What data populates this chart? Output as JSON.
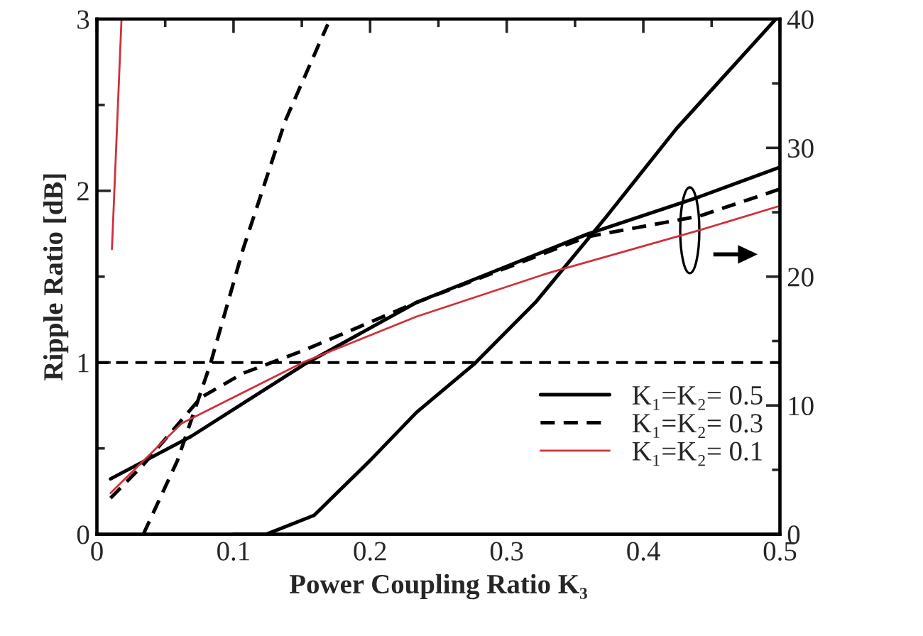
{
  "chart_data": {
    "type": "line",
    "xlabel": "Power Coupling Ratio K₃",
    "ylabel": "Ripple Ratio [dB]",
    "xlim": [
      0,
      0.5
    ],
    "xticks": [
      0,
      0.1,
      0.2,
      0.3,
      0.4,
      0.5
    ],
    "ylim": [
      0,
      3
    ],
    "yticks": [
      0,
      1,
      2,
      3
    ],
    "y2lim": [
      0,
      40
    ],
    "y2ticks": [
      0,
      10,
      20,
      30,
      40
    ],
    "grid": false,
    "legend": "bottom right",
    "marker": "none",
    "ref_lines": [
      {
        "axis": "y",
        "value": 1,
        "color": "#000000",
        "line_style": "dashed"
      }
    ],
    "series": [
      {
        "name": "K₁=K₂= 0.5",
        "color": "#000000",
        "line_style": "solid",
        "axis": "y2",
        "x": [
          0.01,
          0.069,
          0.152,
          0.234,
          0.359,
          0.441,
          0.5
        ],
        "values": [
          4.3,
          7.6,
          13.2,
          18.0,
          23.3,
          26.2,
          28.5
        ]
      },
      {
        "name": "K₁=K₂= 0.3",
        "color": "#000000",
        "line_style": "dashed",
        "axis": "y2",
        "x": [
          0.01,
          0.034,
          0.076,
          0.107,
          0.152,
          0.234,
          0.359,
          0.441,
          0.5
        ],
        "values": [
          2.8,
          5.4,
          10.6,
          12.5,
          14.3,
          18.0,
          23.1,
          24.7,
          26.8
        ]
      },
      {
        "name": "K₁=K₂= 0.1",
        "color": "#d0303a",
        "line_style": "solid",
        "axis": "y2",
        "x": [
          0.01,
          0.062,
          0.152,
          0.234,
          0.331,
          0.441,
          0.5
        ],
        "values": [
          3.2,
          8.6,
          13.4,
          16.9,
          20.3,
          23.6,
          25.5
        ]
      },
      {
        "color": "#000000",
        "line_style": "solid",
        "x": [
          0.1,
          0.124,
          0.159,
          0.2,
          0.234,
          0.276,
          0.321,
          0.372,
          0.424,
          0.497
        ],
        "values": [
          0,
          0,
          0.11,
          0.43,
          0.71,
          0.99,
          1.35,
          1.84,
          2.36,
          3.0
        ]
      },
      {
        "color": "#000000",
        "line_style": "dashed",
        "x": [
          0.034,
          0.059,
          0.083,
          0.107,
          0.138,
          0.169
        ],
        "values": [
          0,
          0.43,
          0.99,
          1.66,
          2.41,
          2.97
        ]
      },
      {
        "color": "#d0303a",
        "line_style": "solid",
        "x": [
          0.011,
          0.018
        ],
        "values": [
          1.66,
          3.0
        ]
      }
    ]
  }
}
